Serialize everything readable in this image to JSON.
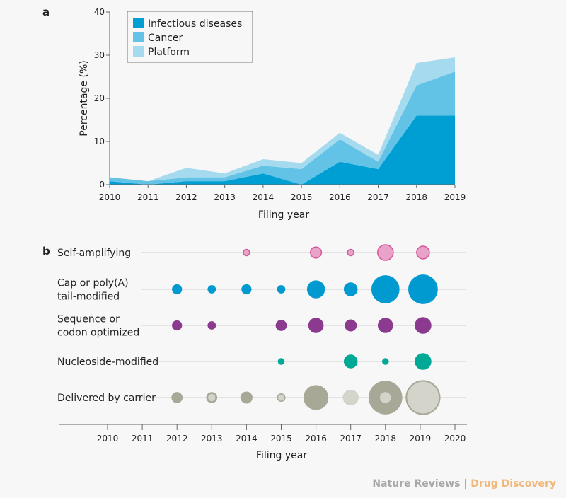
{
  "chart_data": [
    {
      "panel_label": "a",
      "type": "area",
      "stacked": true,
      "x": [
        2010,
        2011,
        2012,
        2013,
        2014,
        2015,
        2016,
        2017,
        2018,
        2019
      ],
      "xlabel": "Filing year",
      "ylabel": "Percentage (%)",
      "ylim": [
        0,
        40
      ],
      "yticks": [
        0,
        10,
        20,
        30,
        40
      ],
      "legend_position": "top-left",
      "series": [
        {
          "name": "Infectious diseases",
          "color": "#009fd3",
          "values": [
            0.8,
            0.0,
            0.8,
            0.8,
            2.6,
            0.0,
            5.3,
            3.6,
            16.0,
            16.0
          ]
        },
        {
          "name": "Cancer",
          "color": "#63c3e6",
          "values": [
            0.9,
            0.8,
            0.9,
            0.9,
            1.8,
            3.6,
            5.2,
            1.7,
            7.0,
            10.2
          ]
        },
        {
          "name": "Platform",
          "color": "#a6dbef",
          "values": [
            0.0,
            0.0,
            2.2,
            0.9,
            1.5,
            1.4,
            1.5,
            1.6,
            5.2,
            3.3
          ]
        }
      ]
    },
    {
      "panel_label": "b",
      "type": "scatter",
      "subtype": "bubble",
      "xlabel": "Filing year",
      "xlim": [
        2009,
        2020
      ],
      "xticks": [
        2010,
        2011,
        2012,
        2013,
        2014,
        2015,
        2016,
        2017,
        2018,
        2019,
        2020
      ],
      "rows": [
        {
          "label": [
            "Self-amplifying"
          ],
          "fill": "#e9a3c9",
          "stroke": "#d5579a",
          "points": [
            {
              "year": 2014,
              "value": 1
            },
            {
              "year": 2016,
              "value": 3
            },
            {
              "year": 2017,
              "value": 1
            },
            {
              "year": 2018,
              "value": 6
            },
            {
              "year": 2019,
              "value": 4
            }
          ]
        },
        {
          "label": [
            "Cap or poly(A)",
            "tail-modified"
          ],
          "fill": "#0099d0",
          "stroke": "#0099d0",
          "points": [
            {
              "year": 2012,
              "value": 2
            },
            {
              "year": 2013,
              "value": 1.3
            },
            {
              "year": 2014,
              "value": 2
            },
            {
              "year": 2015,
              "value": 1.3
            },
            {
              "year": 2016,
              "value": 7
            },
            {
              "year": 2017,
              "value": 4
            },
            {
              "year": 2018,
              "value": 18
            },
            {
              "year": 2019,
              "value": 20
            }
          ]
        },
        {
          "label": [
            "Sequence or",
            "codon optimized"
          ],
          "fill": "#8b3a8f",
          "stroke": "#8b3a8f",
          "points": [
            {
              "year": 2012,
              "value": 2
            },
            {
              "year": 2013,
              "value": 1.3
            },
            {
              "year": 2015,
              "value": 2.5
            },
            {
              "year": 2016,
              "value": 5
            },
            {
              "year": 2017,
              "value": 3
            },
            {
              "year": 2018,
              "value": 5
            },
            {
              "year": 2019,
              "value": 6
            }
          ]
        },
        {
          "label": [
            "Nucleoside-modified"
          ],
          "fill": "#00a896",
          "stroke": "#00a896",
          "points": [
            {
              "year": 2015,
              "value": 0.8
            },
            {
              "year": 2017,
              "value": 4
            },
            {
              "year": 2018,
              "value": 0.8
            },
            {
              "year": 2019,
              "value": 6
            }
          ]
        },
        {
          "label": [
            "Delivered by carrier"
          ],
          "fill": "#a8a897",
          "stroke": "#a8a897",
          "inner_fill": "#d4d4ca",
          "points": [
            {
              "year": 2012,
              "value": 2.5
            },
            {
              "year": 2013,
              "value": 3,
              "inner": 1.3
            },
            {
              "year": 2014,
              "value": 3
            },
            {
              "year": 2015,
              "value": 1.8,
              "inner": 1.1
            },
            {
              "year": 2016,
              "value": 14
            },
            {
              "year": 2017,
              "value": 6,
              "inner": 6
            },
            {
              "year": 2018,
              "value": 28,
              "inner": 3
            },
            {
              "year": 2019,
              "value": 30,
              "inner": 25
            }
          ]
        }
      ]
    }
  ],
  "footer": {
    "publisher": "Nature Reviews",
    "separator": " | ",
    "journal": "Drug Discovery",
    "publisher_color": "#a7a7a7",
    "journal_color": "#f2b77a"
  }
}
